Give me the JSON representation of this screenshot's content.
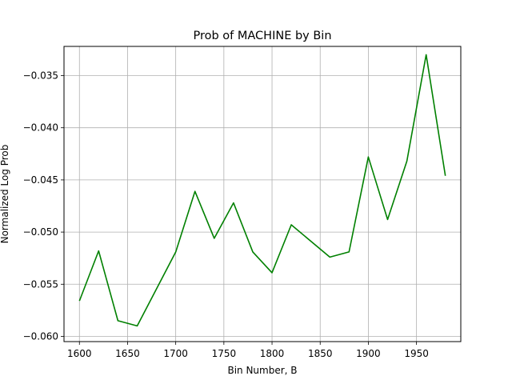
{
  "chart_data": {
    "type": "line",
    "title": "Prob of MACHINE by Bin",
    "xlabel": "Bin Number, B",
    "ylabel": "Normalized Log Prob",
    "xlim": [
      1584,
      1996
    ],
    "ylim": [
      -0.0605,
      -0.0322
    ],
    "x_ticks": [
      1600,
      1650,
      1700,
      1750,
      1800,
      1850,
      1900,
      1950
    ],
    "x_tick_labels": [
      "1600",
      "1650",
      "1700",
      "1750",
      "1800",
      "1850",
      "1900",
      "1950"
    ],
    "y_ticks": [
      -0.035,
      -0.04,
      -0.045,
      -0.05,
      -0.055,
      -0.06
    ],
    "y_tick_labels": [
      "−0.035",
      "−0.040",
      "−0.045",
      "−0.050",
      "−0.055",
      "−0.060"
    ],
    "grid": true,
    "series": [
      {
        "color": "#008000",
        "x": [
          1600,
          1620,
          1640,
          1660,
          1700,
          1720,
          1740,
          1760,
          1780,
          1800,
          1820,
          1860,
          1880,
          1900,
          1920,
          1940,
          1960,
          1980
        ],
        "y": [
          -0.0566,
          -0.0518,
          -0.0585,
          -0.059,
          -0.0519,
          -0.0461,
          -0.0506,
          -0.0472,
          -0.0519,
          -0.0539,
          -0.0493,
          -0.0524,
          -0.0519,
          -0.0428,
          -0.0488,
          -0.0432,
          -0.033,
          -0.0446
        ]
      }
    ]
  }
}
